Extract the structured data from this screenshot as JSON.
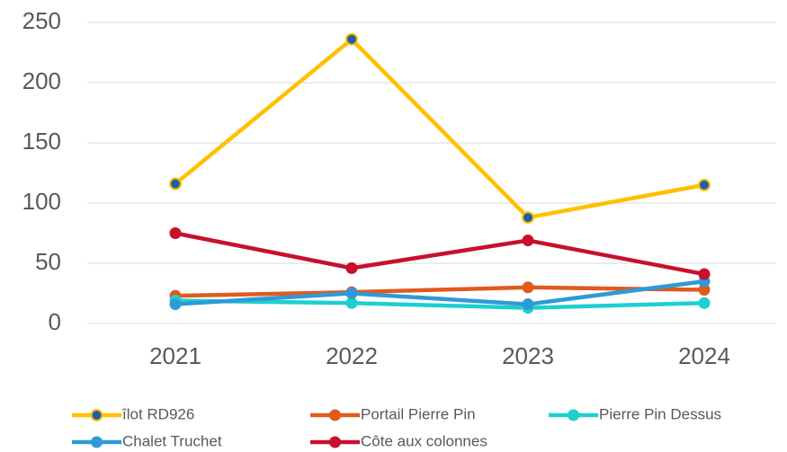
{
  "chart_data": {
    "type": "line",
    "categories": [
      "2021",
      "2022",
      "2023",
      "2024"
    ],
    "ylim": [
      0,
      250
    ],
    "yticks": [
      0,
      50,
      100,
      150,
      200,
      250
    ],
    "grid": true,
    "legend": "bottom",
    "series": [
      {
        "name": "îlot RD926",
        "color": "#FFC000",
        "marker_color": "#1F5FA8",
        "values": [
          116,
          236,
          88,
          115
        ]
      },
      {
        "name": "Portail Pierre Pin",
        "color": "#E05A1E",
        "values": [
          23,
          26,
          30,
          28
        ]
      },
      {
        "name": "Pierre Pin Dessus",
        "color": "#1ECFCF",
        "values": [
          19,
          17,
          13,
          17
        ]
      },
      {
        "name": "Chalet Truchet",
        "color": "#2E9AD6",
        "values": [
          16,
          25,
          16,
          35
        ]
      },
      {
        "name": "Côte aux colonnes",
        "color": "#C8102E",
        "values": [
          75,
          46,
          69,
          41
        ]
      }
    ]
  }
}
